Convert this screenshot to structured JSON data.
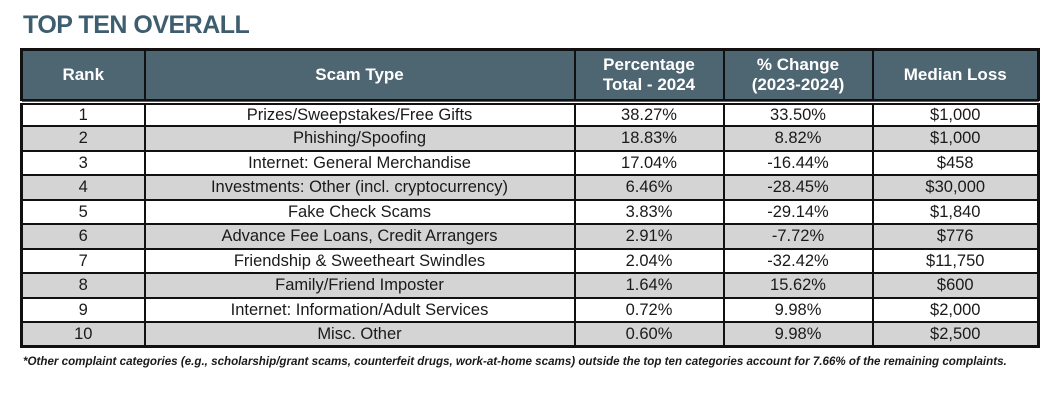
{
  "page": {
    "title": "TOP TEN OVERALL"
  },
  "table": {
    "columns": [
      "Rank",
      "Scam Type",
      "Percentage\nTotal - 2024",
      "% Change\n(2023-2024)",
      "Median Loss"
    ],
    "rows": [
      {
        "rank": "1",
        "scam_type": "Prizes/Sweepstakes/Free Gifts",
        "pct_total": "38.27%",
        "pct_change": "33.50%",
        "median_loss": "$1,000"
      },
      {
        "rank": "2",
        "scam_type": "Phishing/Spoofing",
        "pct_total": "18.83%",
        "pct_change": "8.82%",
        "median_loss": "$1,000"
      },
      {
        "rank": "3",
        "scam_type": "Internet: General Merchandise",
        "pct_total": "17.04%",
        "pct_change": "-16.44%",
        "median_loss": "$458"
      },
      {
        "rank": "4",
        "scam_type": "Investments: Other (incl. cryptocurrency)",
        "pct_total": "6.46%",
        "pct_change": "-28.45%",
        "median_loss": "$30,000"
      },
      {
        "rank": "5",
        "scam_type": "Fake Check Scams",
        "pct_total": "3.83%",
        "pct_change": "-29.14%",
        "median_loss": "$1,840"
      },
      {
        "rank": "6",
        "scam_type": "Advance Fee Loans, Credit Arrangers",
        "pct_total": "2.91%",
        "pct_change": "-7.72%",
        "median_loss": "$776"
      },
      {
        "rank": "7",
        "scam_type": "Friendship & Sweetheart Swindles",
        "pct_total": "2.04%",
        "pct_change": "-32.42%",
        "median_loss": "$11,750"
      },
      {
        "rank": "8",
        "scam_type": "Family/Friend Imposter",
        "pct_total": "1.64%",
        "pct_change": "15.62%",
        "median_loss": "$600"
      },
      {
        "rank": "9",
        "scam_type": "Internet: Information/Adult Services",
        "pct_total": "0.72%",
        "pct_change": "9.98%",
        "median_loss": "$2,000"
      },
      {
        "rank": "10",
        "scam_type": "Misc. Other",
        "pct_total": "0.60%",
        "pct_change": "9.98%",
        "median_loss": "$2,500"
      }
    ]
  },
  "footnote": "*Other complaint categories (e.g., scholarship/grant scams, counterfeit drugs, work-at-home scams) outside the top ten categories account for 7.66% of the remaining complaints.",
  "colors": {
    "title": "#3e5e6f",
    "header_bg": "#4d6671",
    "header_text": "#ffffff",
    "row_alt": "#d4d4d4",
    "border": "#111111"
  }
}
